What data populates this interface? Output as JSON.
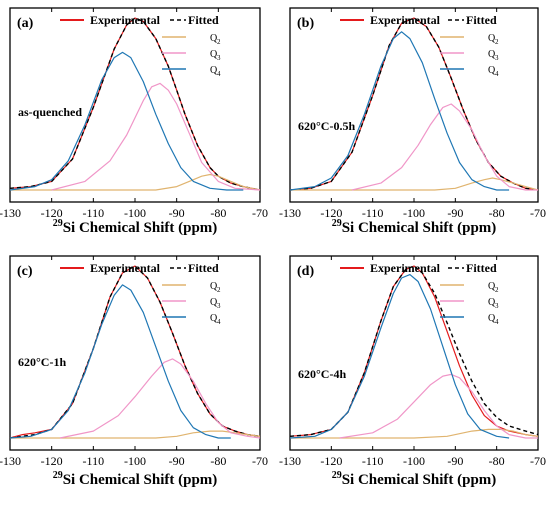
{
  "figure": {
    "xlabel_sup": "29",
    "xlabel_main": "Si Chemical Shift (ppm)"
  },
  "chart_data": [
    {
      "type": "line",
      "panel_label": "(a)",
      "condition": "as-quenched",
      "xlim": [
        -130,
        -70
      ],
      "x_ticks": [
        -130,
        -120,
        -110,
        -100,
        -90,
        -80,
        -70
      ],
      "y_ticks_shown": false,
      "legend_entries": [
        "Experimental",
        "Fitted"
      ],
      "component_labels": [
        "Q",
        "Q",
        "Q"
      ],
      "component_subscripts": [
        "2",
        "3",
        "4"
      ],
      "series": [
        {
          "name": "Experimental",
          "color": "#e41a1c",
          "style": "solid",
          "x": [
            -130,
            -125,
            -120,
            -115,
            -110,
            -105,
            -102,
            -100,
            -98,
            -95,
            -92,
            -90,
            -88,
            -85,
            -82,
            -80,
            -77,
            -74,
            -70
          ],
          "y": [
            0.01,
            0.02,
            0.05,
            0.18,
            0.48,
            0.82,
            0.96,
            1.0,
            0.98,
            0.88,
            0.72,
            0.58,
            0.44,
            0.26,
            0.13,
            0.08,
            0.04,
            0.02,
            0.0
          ]
        },
        {
          "name": "Fitted",
          "color": "#000000",
          "style": "dashed",
          "x": [
            -130,
            -125,
            -120,
            -115,
            -110,
            -105,
            -102,
            -100,
            -98,
            -95,
            -92,
            -90,
            -88,
            -85,
            -82,
            -80,
            -77,
            -74,
            -70
          ],
          "y": [
            0.01,
            0.02,
            0.05,
            0.18,
            0.48,
            0.82,
            0.96,
            1.0,
            0.98,
            0.88,
            0.72,
            0.58,
            0.44,
            0.26,
            0.13,
            0.08,
            0.04,
            0.02,
            0.0
          ]
        },
        {
          "name": "Q2",
          "color": "#e0b46f",
          "style": "solid",
          "x": [
            -130,
            -95,
            -90,
            -87,
            -84,
            -82,
            -80,
            -77,
            -74,
            -70
          ],
          "y": [
            0.0,
            0.0,
            0.02,
            0.05,
            0.08,
            0.09,
            0.08,
            0.05,
            0.02,
            0.0
          ]
        },
        {
          "name": "Q3",
          "color": "#f096c8",
          "style": "solid",
          "x": [
            -120,
            -112,
            -106,
            -102,
            -98,
            -96,
            -94,
            -92,
            -90,
            -87,
            -84,
            -80,
            -76,
            -70
          ],
          "y": [
            0.0,
            0.05,
            0.17,
            0.32,
            0.52,
            0.6,
            0.62,
            0.58,
            0.5,
            0.33,
            0.16,
            0.05,
            0.01,
            0.0
          ]
        },
        {
          "name": "Q4",
          "color": "#1f77b4",
          "style": "solid",
          "x": [
            -130,
            -124,
            -120,
            -116,
            -112,
            -108,
            -105,
            -103,
            -101,
            -98,
            -95,
            -92,
            -89,
            -86,
            -82,
            -78,
            -74
          ],
          "y": [
            0.0,
            0.02,
            0.06,
            0.17,
            0.38,
            0.64,
            0.77,
            0.8,
            0.77,
            0.63,
            0.44,
            0.27,
            0.13,
            0.05,
            0.01,
            0.0,
            0.0
          ]
        }
      ]
    },
    {
      "type": "line",
      "panel_label": "(b)",
      "condition": "620°C-0.5h",
      "xlim": [
        -130,
        -70
      ],
      "x_ticks": [
        -130,
        -120,
        -110,
        -100,
        -90,
        -80,
        -70
      ],
      "y_ticks_shown": false,
      "legend_entries": [
        "Experimental",
        "Fitted"
      ],
      "component_labels": [
        "Q",
        "Q",
        "Q"
      ],
      "component_subscripts": [
        "2",
        "3",
        "4"
      ],
      "series": [
        {
          "name": "Experimental",
          "color": "#e41a1c",
          "style": "solid",
          "x": [
            -130,
            -125,
            -120,
            -115,
            -110,
            -106,
            -103,
            -100,
            -97,
            -94,
            -91,
            -88,
            -85,
            -82,
            -79,
            -76,
            -73,
            -70
          ],
          "y": [
            0.0,
            0.01,
            0.05,
            0.22,
            0.55,
            0.84,
            0.97,
            1.0,
            0.95,
            0.83,
            0.65,
            0.46,
            0.29,
            0.16,
            0.08,
            0.04,
            0.01,
            0.0
          ]
        },
        {
          "name": "Fitted",
          "color": "#000000",
          "style": "dashed",
          "x": [
            -130,
            -125,
            -120,
            -115,
            -110,
            -106,
            -103,
            -100,
            -97,
            -94,
            -91,
            -88,
            -85,
            -82,
            -79,
            -76,
            -73,
            -70
          ],
          "y": [
            0.0,
            0.01,
            0.05,
            0.22,
            0.55,
            0.84,
            0.97,
            1.0,
            0.95,
            0.83,
            0.65,
            0.46,
            0.29,
            0.16,
            0.08,
            0.04,
            0.01,
            0.0
          ]
        },
        {
          "name": "Q2",
          "color": "#e0b46f",
          "style": "solid",
          "x": [
            -130,
            -95,
            -90,
            -86,
            -83,
            -81,
            -79,
            -76,
            -73,
            -70
          ],
          "y": [
            0.0,
            0.0,
            0.01,
            0.04,
            0.06,
            0.07,
            0.06,
            0.04,
            0.02,
            0.0
          ]
        },
        {
          "name": "Q3",
          "color": "#f096c8",
          "style": "solid",
          "x": [
            -115,
            -108,
            -103,
            -99,
            -96,
            -93,
            -91,
            -89,
            -86,
            -83,
            -80,
            -77,
            -73,
            -70
          ],
          "y": [
            0.0,
            0.04,
            0.13,
            0.26,
            0.38,
            0.48,
            0.5,
            0.46,
            0.35,
            0.2,
            0.08,
            0.02,
            0.0,
            0.0
          ]
        },
        {
          "name": "Q4",
          "color": "#1f77b4",
          "style": "solid",
          "x": [
            -130,
            -124,
            -120,
            -116,
            -112,
            -108,
            -105,
            -103,
            -101,
            -98,
            -95,
            -92,
            -89,
            -86,
            -83,
            -80,
            -77
          ],
          "y": [
            0.0,
            0.02,
            0.07,
            0.2,
            0.44,
            0.72,
            0.88,
            0.92,
            0.88,
            0.74,
            0.53,
            0.33,
            0.16,
            0.06,
            0.02,
            0.0,
            0.0
          ]
        }
      ]
    },
    {
      "type": "line",
      "panel_label": "(c)",
      "condition": "620°C-1h",
      "xlim": [
        -130,
        -70
      ],
      "x_ticks": [
        -130,
        -120,
        -110,
        -100,
        -90,
        -80,
        -70
      ],
      "y_ticks_shown": false,
      "legend_entries": [
        "Experimental",
        "Fitted"
      ],
      "component_labels": [
        "Q",
        "Q",
        "Q"
      ],
      "component_subscripts": [
        "2",
        "3",
        "4"
      ],
      "series": [
        {
          "name": "Experimental",
          "color": "#e41a1c",
          "style": "solid",
          "x": [
            -130,
            -127,
            -124,
            -120,
            -115,
            -110,
            -106,
            -103,
            -100,
            -97,
            -94,
            -91,
            -88,
            -85,
            -82,
            -79,
            -76,
            -73,
            -70
          ],
          "y": [
            0.0,
            0.02,
            0.03,
            0.05,
            0.2,
            0.52,
            0.82,
            0.96,
            1.0,
            0.93,
            0.79,
            0.61,
            0.42,
            0.26,
            0.14,
            0.07,
            0.04,
            0.02,
            0.01
          ]
        },
        {
          "name": "Fitted",
          "color": "#000000",
          "style": "dashed",
          "x": [
            -130,
            -127,
            -124,
            -120,
            -115,
            -110,
            -106,
            -103,
            -100,
            -97,
            -94,
            -91,
            -88,
            -85,
            -82,
            -79,
            -76,
            -73,
            -70
          ],
          "y": [
            0.0,
            0.01,
            0.02,
            0.05,
            0.2,
            0.52,
            0.82,
            0.96,
            1.0,
            0.93,
            0.79,
            0.61,
            0.42,
            0.26,
            0.14,
            0.07,
            0.04,
            0.02,
            0.01
          ]
        },
        {
          "name": "Q2",
          "color": "#e0b46f",
          "style": "solid",
          "x": [
            -130,
            -95,
            -90,
            -86,
            -82,
            -79,
            -76,
            -73,
            -70
          ],
          "y": [
            0.0,
            0.0,
            0.01,
            0.03,
            0.04,
            0.04,
            0.03,
            0.02,
            0.01
          ]
        },
        {
          "name": "Q3",
          "color": "#f096c8",
          "style": "solid",
          "x": [
            -118,
            -110,
            -104,
            -100,
            -96,
            -93,
            -91,
            -89,
            -86,
            -83,
            -80,
            -77,
            -73,
            -70
          ],
          "y": [
            0.0,
            0.04,
            0.13,
            0.24,
            0.36,
            0.44,
            0.46,
            0.43,
            0.33,
            0.2,
            0.09,
            0.03,
            0.01,
            0.0
          ]
        },
        {
          "name": "Q4",
          "color": "#1f77b4",
          "style": "solid",
          "x": [
            -130,
            -125,
            -120,
            -116,
            -112,
            -108,
            -105,
            -103,
            -101,
            -98,
            -95,
            -92,
            -89,
            -86,
            -83,
            -80,
            -77
          ],
          "y": [
            0.0,
            0.01,
            0.05,
            0.16,
            0.38,
            0.66,
            0.83,
            0.89,
            0.86,
            0.73,
            0.53,
            0.33,
            0.16,
            0.06,
            0.02,
            0.0,
            0.0
          ]
        }
      ]
    },
    {
      "type": "line",
      "panel_label": "(d)",
      "condition": "620°C-4h",
      "xlim": [
        -130,
        -70
      ],
      "x_ticks": [
        -130,
        -120,
        -110,
        -100,
        -90,
        -80,
        -70
      ],
      "y_ticks_shown": false,
      "legend_entries": [
        "Experimental",
        "Fitted"
      ],
      "component_labels": [
        "Q",
        "Q",
        "Q"
      ],
      "component_subscripts": [
        "2",
        "3",
        "4"
      ],
      "series": [
        {
          "name": "Experimental",
          "color": "#e41a1c",
          "style": "solid",
          "x": [
            -130,
            -125,
            -120,
            -116,
            -112,
            -108,
            -105,
            -102,
            -100,
            -98,
            -95,
            -92,
            -89,
            -86,
            -83,
            -80,
            -77,
            -73,
            -70
          ],
          "y": [
            0.01,
            0.02,
            0.05,
            0.15,
            0.38,
            0.68,
            0.88,
            0.98,
            1.0,
            0.96,
            0.82,
            0.62,
            0.42,
            0.25,
            0.13,
            0.07,
            0.04,
            0.02,
            0.01
          ]
        },
        {
          "name": "Fitted",
          "color": "#000000",
          "style": "dashed",
          "x": [
            -130,
            -125,
            -120,
            -116,
            -112,
            -108,
            -105,
            -102,
            -100,
            -98,
            -95,
            -92,
            -89,
            -86,
            -83,
            -80,
            -77,
            -73,
            -70
          ],
          "y": [
            0.01,
            0.02,
            0.05,
            0.15,
            0.38,
            0.68,
            0.88,
            0.98,
            1.0,
            0.96,
            0.84,
            0.67,
            0.49,
            0.33,
            0.2,
            0.12,
            0.07,
            0.04,
            0.02
          ]
        },
        {
          "name": "Q2",
          "color": "#e0b46f",
          "style": "solid",
          "x": [
            -130,
            -100,
            -92,
            -86,
            -82,
            -79,
            -76,
            -73,
            -70
          ],
          "y": [
            0.0,
            0.0,
            0.01,
            0.04,
            0.05,
            0.05,
            0.04,
            0.02,
            0.01
          ]
        },
        {
          "name": "Q3",
          "color": "#f096c8",
          "style": "solid",
          "x": [
            -118,
            -110,
            -104,
            -100,
            -96,
            -93,
            -91,
            -89,
            -86,
            -83,
            -80,
            -77,
            -73,
            -70
          ],
          "y": [
            0.0,
            0.03,
            0.11,
            0.21,
            0.31,
            0.36,
            0.37,
            0.35,
            0.27,
            0.16,
            0.07,
            0.02,
            0.0,
            0.0
          ]
        },
        {
          "name": "Q4",
          "color": "#1f77b4",
          "style": "solid",
          "x": [
            -130,
            -124,
            -120,
            -116,
            -112,
            -108,
            -105,
            -103,
            -101,
            -99,
            -96,
            -93,
            -90,
            -87,
            -84,
            -80,
            -77
          ],
          "y": [
            0.0,
            0.01,
            0.05,
            0.15,
            0.36,
            0.64,
            0.84,
            0.93,
            0.95,
            0.91,
            0.75,
            0.53,
            0.31,
            0.14,
            0.05,
            0.01,
            0.0
          ]
        }
      ]
    }
  ]
}
